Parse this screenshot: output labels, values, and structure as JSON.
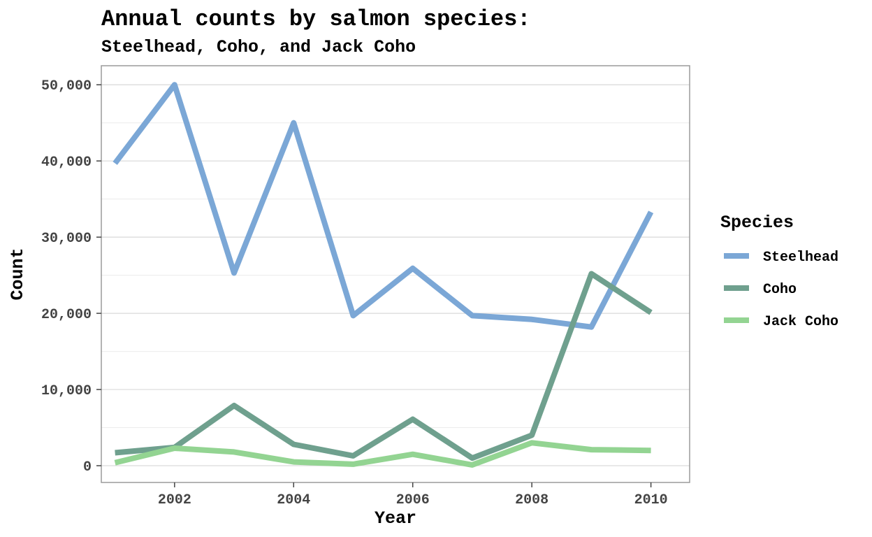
{
  "chart_data": {
    "type": "line",
    "title": "Annual counts by salmon species:",
    "subtitle": "Steelhead, Coho, and Jack Coho",
    "xlabel": "Year",
    "ylabel": "Count",
    "xlim": [
      2000.77,
      2010.65
    ],
    "ylim": [
      -2200,
      52500
    ],
    "x_ticks": [
      2002,
      2004,
      2006,
      2008,
      2010
    ],
    "y_ticks": [
      0,
      10000,
      20000,
      30000,
      40000,
      50000
    ],
    "y_tick_labels": [
      "0",
      "10,000",
      "20,000",
      "30,000",
      "40,000",
      "50,000"
    ],
    "grid": true,
    "legend_title": "Species",
    "legend_position": "right",
    "x": [
      2001,
      2002,
      2003,
      2004,
      2005,
      2006,
      2007,
      2008,
      2009,
      2010
    ],
    "series": [
      {
        "name": "Steelhead",
        "color": "#7BA7D6",
        "values": [
          39700,
          50000,
          25300,
          45000,
          19700,
          25900,
          19700,
          19200,
          18200,
          33300
        ]
      },
      {
        "name": "Coho",
        "color": "#6FA08E",
        "values": [
          1700,
          2400,
          7900,
          2800,
          1300,
          6100,
          1000,
          4000,
          25200,
          20100
        ]
      },
      {
        "name": "Jack Coho",
        "color": "#93D492",
        "values": [
          400,
          2300,
          1800,
          500,
          200,
          1500,
          100,
          3000,
          2100,
          2000
        ]
      }
    ]
  }
}
